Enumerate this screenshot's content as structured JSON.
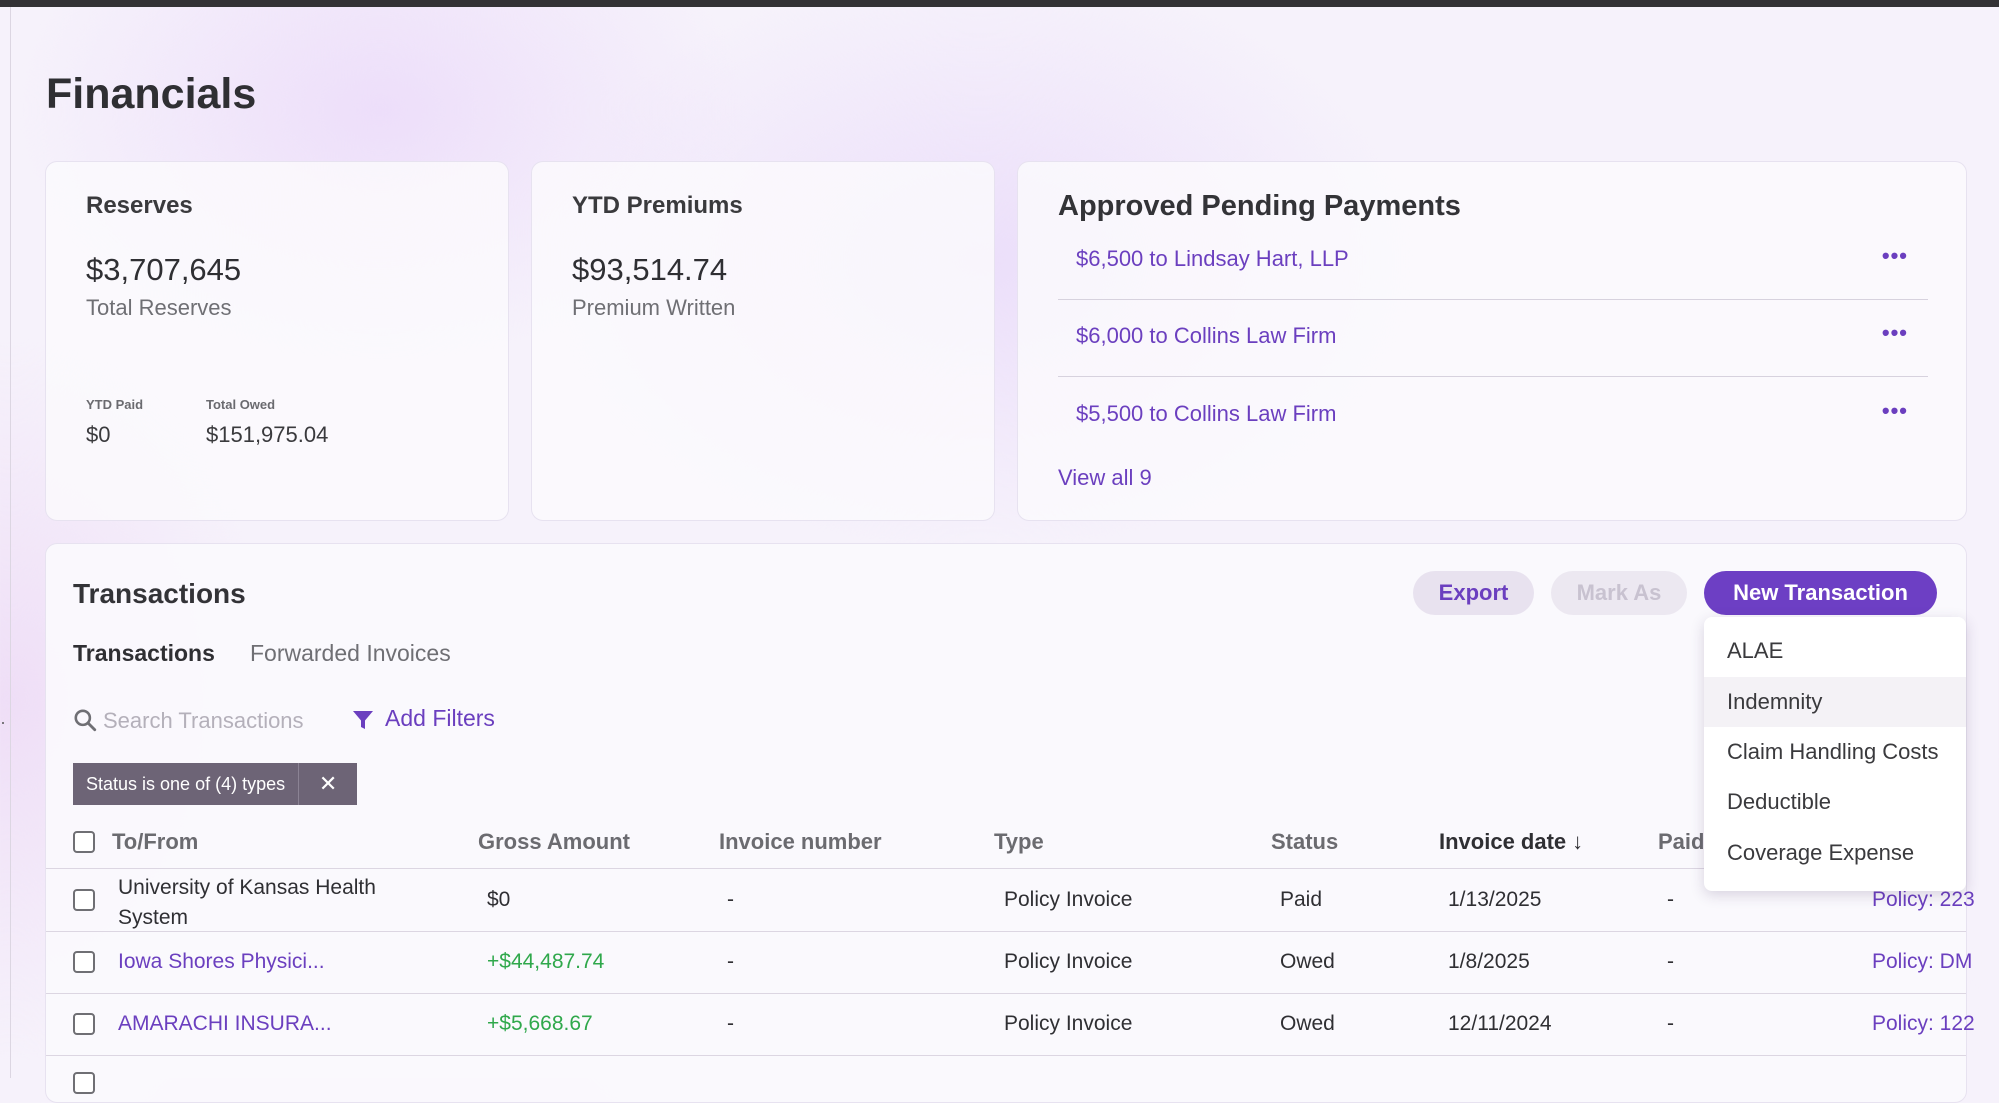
{
  "page": {
    "title": "Financials"
  },
  "reserves": {
    "title": "Reserves",
    "value": "$3,707,645",
    "subtitle": "Total Reserves",
    "ytd_paid": {
      "label": "YTD Paid",
      "value": "$0"
    },
    "total_owed": {
      "label": "Total Owed",
      "value": "$151,975.04"
    }
  },
  "ytd_premiums": {
    "title": "YTD Premiums",
    "value": "$93,514.74",
    "subtitle": "Premium Written"
  },
  "approved_pending": {
    "title": "Approved Pending Payments",
    "payments": [
      {
        "label": "$6,500 to Lindsay Hart, LLP",
        "more": "•••"
      },
      {
        "label": "$6,000 to Collins Law Firm",
        "more": "•••"
      },
      {
        "label": "$5,500 to Collins Law Firm",
        "more": "•••"
      }
    ],
    "view_all": "View all 9"
  },
  "transactions": {
    "title": "Transactions",
    "actions": {
      "export": "Export",
      "mark_as": "Mark As",
      "new_transaction": "New Transaction"
    },
    "tabs": [
      {
        "label": "Transactions",
        "active": true
      },
      {
        "label": "Forwarded Invoices",
        "active": false
      }
    ],
    "search": {
      "placeholder": "Search Transactions",
      "icon": "search-icon"
    },
    "filters": {
      "add_label": "Add Filters",
      "icon": "filter-icon"
    },
    "active_filter": {
      "label": "Status is one of (4) types",
      "close": "✕"
    },
    "columns": [
      "To/From",
      "Gross Amount",
      "Invoice number",
      "Type",
      "Status",
      "Invoice date",
      "Paid"
    ],
    "sorted_column": "Invoice date",
    "rows": [
      {
        "to_from": "University of Kansas Health System",
        "gross": "$0",
        "invoice_number": "-",
        "type": "Policy Invoice",
        "status": "Paid",
        "invoice_date": "1/13/2025",
        "paid": "-",
        "policy": "Policy: 223"
      },
      {
        "to_from": "Iowa Shores Physici...",
        "gross": "+$44,487.74",
        "invoice_number": "-",
        "type": "Policy Invoice",
        "status": "Owed",
        "invoice_date": "1/8/2025",
        "paid": "-",
        "policy": "Policy: DM"
      },
      {
        "to_from": "AMARACHI INSURA...",
        "gross": "+$5,668.67",
        "invoice_number": "-",
        "type": "Policy Invoice",
        "status": "Owed",
        "invoice_date": "12/11/2024",
        "paid": "-",
        "policy": "Policy: 122"
      }
    ]
  },
  "new_transaction_menu": {
    "items": [
      "ALAE",
      "Indemnity",
      "Claim Handling Costs",
      "Deductible",
      "Coverage Expense"
    ],
    "highlighted": "Indemnity"
  },
  "colors": {
    "accent": "#6d3fc4",
    "link": "#6b3fbf",
    "positive": "#2fa84b",
    "chip": "#6d6476"
  }
}
